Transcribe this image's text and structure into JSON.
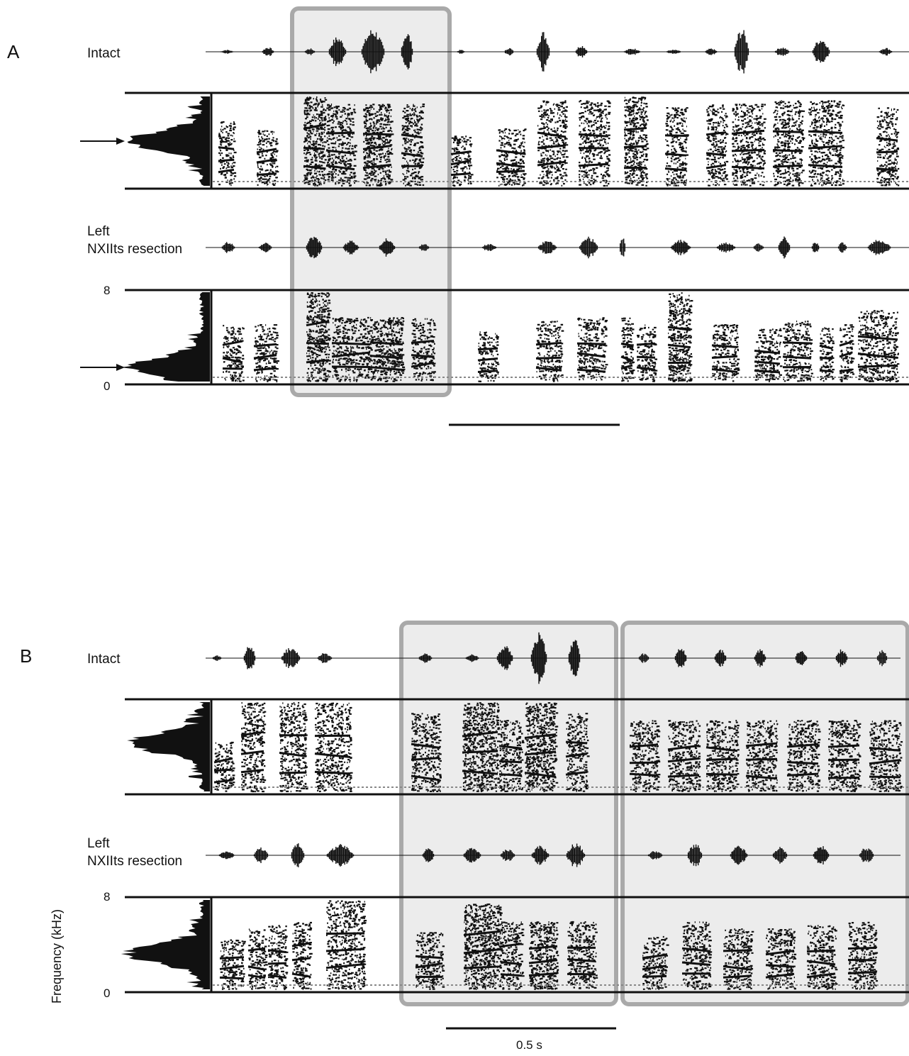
{
  "panels": [
    {
      "id": "A",
      "label": "A",
      "track_labels": {
        "intact": "Intact",
        "resection_line1": "Left",
        "resection_line2": "NXIIts resection"
      },
      "freq_ticks": {
        "top": "8",
        "bottom": "0"
      },
      "scale_bar_label": ""
    },
    {
      "id": "B",
      "label": "B",
      "track_labels": {
        "intact": "Intact",
        "resection_line1": "Left",
        "resection_line2": "NXIIts resection"
      },
      "freq_ticks": {
        "top": "8",
        "bottom": "0"
      },
      "y_axis_label": "Frequency (kHz)",
      "scale_bar_label": "0.5 s"
    }
  ],
  "colors": {
    "ink": "#111111",
    "highlight_fill": "#ececec",
    "highlight_stroke": "#a9a9a9"
  }
}
